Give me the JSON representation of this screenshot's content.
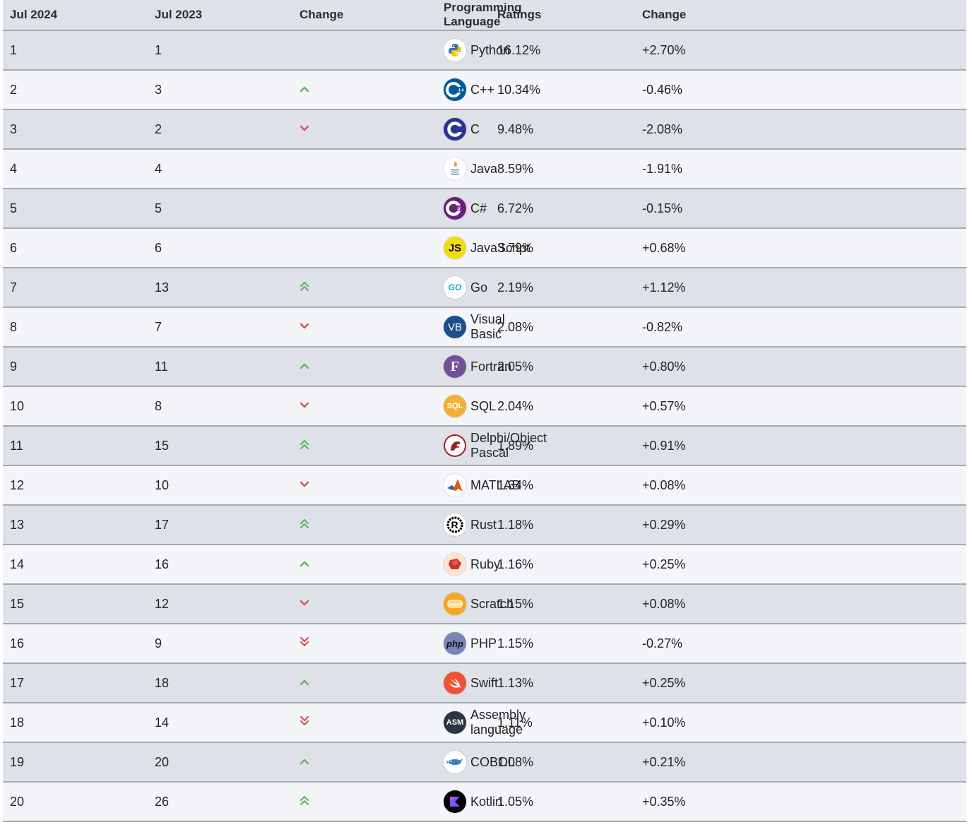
{
  "headers": [
    "Jul 2024",
    "Jul 2023",
    "Change",
    "Programming Language",
    "Ratings",
    "Change"
  ],
  "rows": [
    {
      "rank": "1",
      "prev": "1",
      "trend": "none",
      "language": "Python",
      "rating": "16.12%",
      "change": "+2.70%",
      "icon": "python-icon"
    },
    {
      "rank": "2",
      "prev": "3",
      "trend": "up",
      "language": "C++",
      "rating": "10.34%",
      "change": "-0.46%",
      "icon": "cpp-icon"
    },
    {
      "rank": "3",
      "prev": "2",
      "trend": "down",
      "language": "C",
      "rating": "9.48%",
      "change": "-2.08%",
      "icon": "c-icon"
    },
    {
      "rank": "4",
      "prev": "4",
      "trend": "none",
      "language": "Java",
      "rating": "8.59%",
      "change": "-1.91%",
      "icon": "java-icon"
    },
    {
      "rank": "5",
      "prev": "5",
      "trend": "none",
      "language": "C#",
      "rating": "6.72%",
      "change": "-0.15%",
      "icon": "csharp-icon"
    },
    {
      "rank": "6",
      "prev": "6",
      "trend": "none",
      "language": "JavaScript",
      "rating": "3.79%",
      "change": "+0.68%",
      "icon": "javascript-icon"
    },
    {
      "rank": "7",
      "prev": "13",
      "trend": "double-up",
      "language": "Go",
      "rating": "2.19%",
      "change": "+1.12%",
      "icon": "go-icon"
    },
    {
      "rank": "8",
      "prev": "7",
      "trend": "down",
      "language": "Visual Basic",
      "rating": "2.08%",
      "change": "-0.82%",
      "icon": "visual-basic-icon"
    },
    {
      "rank": "9",
      "prev": "11",
      "trend": "up",
      "language": "Fortran",
      "rating": "2.05%",
      "change": "+0.80%",
      "icon": "fortran-icon"
    },
    {
      "rank": "10",
      "prev": "8",
      "trend": "down",
      "language": "SQL",
      "rating": "2.04%",
      "change": "+0.57%",
      "icon": "sql-icon"
    },
    {
      "rank": "11",
      "prev": "15",
      "trend": "double-up",
      "language": "Delphi/Object Pascal",
      "rating": "1.89%",
      "change": "+0.91%",
      "icon": "delphi-icon"
    },
    {
      "rank": "12",
      "prev": "10",
      "trend": "down",
      "language": "MATLAB",
      "rating": "1.34%",
      "change": "+0.08%",
      "icon": "matlab-icon"
    },
    {
      "rank": "13",
      "prev": "17",
      "trend": "double-up",
      "language": "Rust",
      "rating": "1.18%",
      "change": "+0.29%",
      "icon": "rust-icon"
    },
    {
      "rank": "14",
      "prev": "16",
      "trend": "up",
      "language": "Ruby",
      "rating": "1.16%",
      "change": "+0.25%",
      "icon": "ruby-icon"
    },
    {
      "rank": "15",
      "prev": "12",
      "trend": "down",
      "language": "Scratch",
      "rating": "1.15%",
      "change": "+0.08%",
      "icon": "scratch-icon"
    },
    {
      "rank": "16",
      "prev": "9",
      "trend": "double-down",
      "language": "PHP",
      "rating": "1.15%",
      "change": "-0.27%",
      "icon": "php-icon"
    },
    {
      "rank": "17",
      "prev": "18",
      "trend": "up",
      "language": "Swift",
      "rating": "1.13%",
      "change": "+0.25%",
      "icon": "swift-icon"
    },
    {
      "rank": "18",
      "prev": "14",
      "trend": "double-down",
      "language": "Assembly language",
      "rating": "1.11%",
      "change": "+0.10%",
      "icon": "assembly-icon"
    },
    {
      "rank": "19",
      "prev": "20",
      "trend": "up",
      "language": "COBOL",
      "rating": "1.08%",
      "change": "+0.21%",
      "icon": "cobol-icon"
    },
    {
      "rank": "20",
      "prev": "26",
      "trend": "double-up",
      "language": "Kotlin",
      "rating": "1.05%",
      "change": "+0.35%",
      "icon": "kotlin-icon"
    }
  ],
  "icon_text": {
    "javascript-icon": "JS",
    "visual-basic-icon": "VB",
    "fortran-icon": "F",
    "sql-icon": "SQL",
    "php-icon": "php",
    "assembly-icon": "ASM",
    "go-icon": "GO"
  },
  "colors": {
    "up_arrow": "#5cb85c",
    "down_arrow": "#d9534f",
    "row_odd": "#dee2e8",
    "row_even": "#f3f5f8",
    "border": "#a7aab0"
  }
}
